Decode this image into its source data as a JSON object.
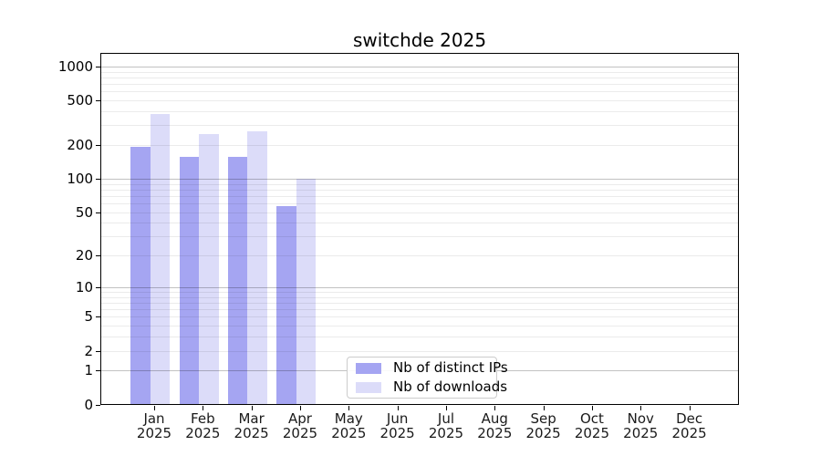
{
  "title": "switchde 2025",
  "x_axis": {
    "months": [
      "Jan",
      "Feb",
      "Mar",
      "Apr",
      "May",
      "Jun",
      "Jul",
      "Aug",
      "Sep",
      "Oct",
      "Nov",
      "Dec"
    ],
    "year": "2025"
  },
  "y_axis": {
    "tick_labels": [
      "0",
      "1",
      "2",
      "5",
      "10",
      "20",
      "50",
      "100",
      "200",
      "500",
      "1000"
    ],
    "scale": "log(1+x)"
  },
  "legend": {
    "items": [
      {
        "label": "Nb of distinct IPs",
        "color": "#a5a5f2"
      },
      {
        "label": "Nb of downloads",
        "color": "#dcdcf9"
      }
    ]
  },
  "colors": {
    "bar_distinct_ips": "#a5a5f2",
    "bar_downloads": "#dcdcf9",
    "major_grid": "rgba(0,0,0,0.24)",
    "minor_grid": "rgba(0,0,0,0.08)",
    "legend_border": "#cccccc",
    "spine": "#000000"
  },
  "chart_data": {
    "type": "bar",
    "title": "switchde 2025",
    "categories": [
      "Jan 2025",
      "Feb 2025",
      "Mar 2025",
      "Apr 2025",
      "May 2025",
      "Jun 2025",
      "Jul 2025",
      "Aug 2025",
      "Sep 2025",
      "Oct 2025",
      "Nov 2025",
      "Dec 2025"
    ],
    "series": [
      {
        "name": "Nb of distinct IPs",
        "color": "#a5a5f2",
        "values": [
          193,
          158,
          158,
          57,
          null,
          null,
          null,
          null,
          null,
          null,
          null,
          null
        ]
      },
      {
        "name": "Nb of downloads",
        "color": "#dcdcf9",
        "values": [
          380,
          250,
          265,
          100,
          null,
          null,
          null,
          null,
          null,
          null,
          null,
          null
        ]
      }
    ],
    "xlabel": "",
    "ylabel": "",
    "y_scale": "log1p",
    "y_ticks": [
      0,
      1,
      2,
      5,
      10,
      20,
      50,
      100,
      200,
      500,
      1000
    ],
    "ylim": [
      0,
      1350
    ],
    "grid": "horizontal",
    "legend_position": "inside-lower-center"
  }
}
